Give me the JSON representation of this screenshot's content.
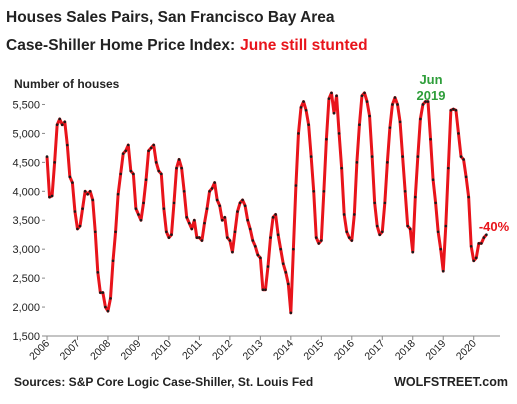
{
  "chart_data": {
    "type": "line",
    "title": "Houses Sales Pairs, San Francisco Bay Area",
    "subtitle": "Case-Shiller Home Price Index:",
    "subtitle_highlight": "June still stunted",
    "ylabel": "Number of houses",
    "source": "Sources: S&P Core Logic Case-Shiller, St. Louis Fed",
    "brand": "WOLFSTREET.com",
    "annotations": [
      {
        "lines": [
          "Jun",
          "2019"
        ],
        "color": "#2e9e3a"
      },
      {
        "lines": [
          "-40%"
        ],
        "color": "#e8141b"
      }
    ],
    "categories": [
      "2006",
      null,
      null,
      null,
      null,
      null,
      null,
      null,
      null,
      null,
      null,
      null,
      "2007",
      null,
      null,
      null,
      null,
      null,
      null,
      null,
      null,
      null,
      null,
      null,
      "2008",
      null,
      null,
      null,
      null,
      null,
      null,
      null,
      null,
      null,
      null,
      null,
      "2009",
      null,
      null,
      null,
      null,
      null,
      null,
      null,
      null,
      null,
      null,
      null,
      "2010",
      null,
      null,
      null,
      null,
      null,
      null,
      null,
      null,
      null,
      null,
      null,
      "2011",
      null,
      null,
      null,
      null,
      null,
      null,
      null,
      null,
      null,
      null,
      null,
      "2012",
      null,
      null,
      null,
      null,
      null,
      null,
      null,
      null,
      null,
      null,
      null,
      "2013",
      null,
      null,
      null,
      null,
      null,
      null,
      null,
      null,
      null,
      null,
      null,
      "2014",
      null,
      null,
      null,
      null,
      null,
      null,
      null,
      null,
      null,
      null,
      null,
      "2015",
      null,
      null,
      null,
      null,
      null,
      null,
      null,
      null,
      null,
      null,
      null,
      "2016",
      null,
      null,
      null,
      null,
      null,
      null,
      null,
      null,
      null,
      null,
      null,
      "2017",
      null,
      null,
      null,
      null,
      null,
      null,
      null,
      null,
      null,
      null,
      null,
      "2018",
      null,
      null,
      null,
      null,
      null,
      null,
      null,
      null,
      null,
      null,
      null,
      "2019",
      null,
      null,
      null,
      null,
      null,
      null,
      null,
      null,
      null,
      null,
      null,
      "2020",
      null,
      null,
      null,
      null,
      null
    ],
    "series": [
      {
        "name": "Number of houses",
        "color": "#e8141b",
        "marker_color": "#1a1a1a",
        "values": [
          4600,
          3900,
          3920,
          4500,
          5150,
          5250,
          5150,
          5200,
          4800,
          4250,
          4150,
          3650,
          3350,
          3400,
          3700,
          4000,
          3950,
          4000,
          3850,
          3300,
          2600,
          2250,
          2250,
          2000,
          1930,
          2150,
          2800,
          3300,
          3950,
          4300,
          4650,
          4700,
          4800,
          4350,
          4300,
          3700,
          3600,
          3500,
          3800,
          4200,
          4700,
          4750,
          4800,
          4500,
          4350,
          4300,
          3700,
          3300,
          3200,
          3250,
          3800,
          4400,
          4550,
          4400,
          4000,
          3550,
          3450,
          3350,
          3500,
          3200,
          3200,
          3150,
          3450,
          3700,
          4000,
          4050,
          4150,
          3850,
          3750,
          3500,
          3550,
          3200,
          3150,
          2950,
          3300,
          3650,
          3800,
          3850,
          3750,
          3500,
          3350,
          3150,
          3050,
          2900,
          2850,
          2300,
          2300,
          2700,
          3200,
          3550,
          3600,
          3250,
          3000,
          2750,
          2600,
          2400,
          1900,
          3000,
          4100,
          5000,
          5450,
          5550,
          5400,
          5150,
          4600,
          4000,
          3200,
          3100,
          3150,
          4000,
          4900,
          5600,
          5700,
          5350,
          5650,
          5000,
          4400,
          3600,
          3300,
          3200,
          3150,
          3600,
          4500,
          5150,
          5650,
          5700,
          5550,
          5300,
          4600,
          3800,
          3400,
          3250,
          3300,
          3800,
          4500,
          5100,
          5500,
          5620,
          5500,
          5200,
          4600,
          4000,
          3400,
          3350,
          2950,
          3900,
          4600,
          5250,
          5500,
          5550,
          5550,
          4900,
          4200,
          3800,
          3300,
          3000,
          2620,
          3400,
          4400,
          5400,
          5420,
          5400,
          5000,
          4600,
          4550,
          4250,
          3900,
          3050,
          2800,
          2850,
          3100,
          3100,
          3200,
          3250
        ]
      }
    ],
    "ylim": [
      1500,
      5750
    ],
    "yticks": [
      {
        "value": 1500,
        "label": "1,500"
      },
      {
        "value": 2000,
        "label": "2,000"
      },
      {
        "value": 2500,
        "label": "2,500"
      },
      {
        "value": 3000,
        "label": "3,000"
      },
      {
        "value": 3500,
        "label": "3,500"
      },
      {
        "value": 4000,
        "label": "4,000"
      },
      {
        "value": 4500,
        "label": "4,500"
      },
      {
        "value": 5000,
        "label": "5,000"
      },
      {
        "value": 5500,
        "label": "5,500"
      }
    ],
    "grid": false
  }
}
